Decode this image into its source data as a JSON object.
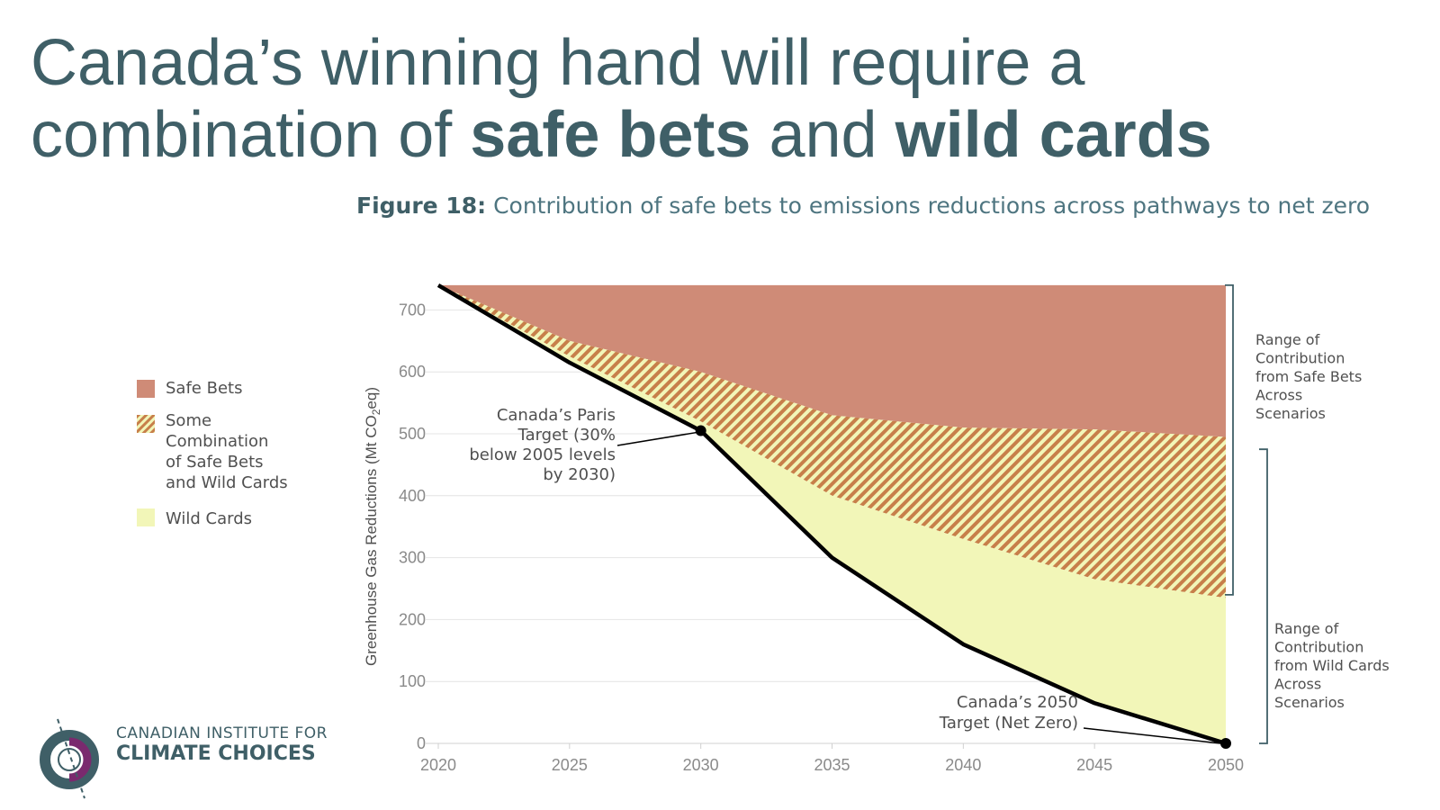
{
  "slide": {
    "title_part1": "Canada’s winning hand will require a combination of ",
    "title_bold1": "safe bets",
    "title_part2": " and ",
    "title_bold2": "wild cards"
  },
  "figure": {
    "label": "Figure 18:",
    "caption": " Contribution of safe bets to emissions reductions across pathways to net zero"
  },
  "legend": {
    "items": [
      {
        "label": "Safe Bets",
        "color": "#cf8b77"
      },
      {
        "label": "Some\nCombination\nof Safe Bets\nand Wild Cards",
        "color": "#c77f4a"
      },
      {
        "label": "Wild Cards",
        "color": "#f2f6b8"
      }
    ]
  },
  "logo": {
    "line1": "CANADIAN INSTITUTE FOR",
    "line2": "CLIMATE CHOICES"
  },
  "chart_data": {
    "type": "area",
    "ylabel_main": "Greenhouse Gas Reductions (Mt CO",
    "ylabel_sub": "2",
    "ylabel_end": "eq)",
    "xlim": [
      2020,
      2050
    ],
    "ylim": [
      0,
      750
    ],
    "x_ticks": [
      "2020",
      "2025",
      "2030",
      "2035",
      "2040",
      "2045",
      "2050"
    ],
    "y_ticks": [
      "0",
      "100",
      "200",
      "300",
      "400",
      "500",
      "600",
      "700"
    ],
    "colors": {
      "safe": "#cf8b77",
      "hatch": "#c77f4a",
      "wild": "#f2f6b8",
      "line": "#000000"
    },
    "series": [
      {
        "name": "Safe Bets",
        "x": [
          2020,
          2025,
          2030,
          2035,
          2040,
          2045,
          2050
        ],
        "y_top": [
          740,
          740,
          740,
          740,
          740,
          740,
          740
        ],
        "y_bottom": [
          740,
          650,
          600,
          530,
          510,
          507,
          495
        ]
      },
      {
        "name": "Some Combination of Safe Bets and Wild Cards",
        "x": [
          2020,
          2025,
          2030,
          2035,
          2040,
          2045,
          2050
        ],
        "y_top": [
          740,
          650,
          600,
          530,
          510,
          507,
          495
        ],
        "y_bottom": [
          740,
          625,
          520,
          400,
          330,
          265,
          235
        ]
      },
      {
        "name": "Wild Cards",
        "x": [
          2020,
          2025,
          2030,
          2035,
          2040,
          2045,
          2050
        ],
        "y_top": [
          740,
          625,
          520,
          400,
          330,
          265,
          235
        ],
        "y_bottom": [
          740,
          615,
          505,
          300,
          160,
          65,
          0
        ]
      }
    ],
    "target_line": {
      "x": [
        2020,
        2025,
        2030,
        2035,
        2040,
        2045,
        2050
      ],
      "y": [
        740,
        615,
        505,
        300,
        160,
        65,
        0
      ]
    },
    "annotations": [
      {
        "text": "Canada’s Paris\nTarget (30%\nbelow 2005 levels\nby 2030)",
        "x": 2030,
        "y": 505
      },
      {
        "text": "Canada’s 2050\nTarget (Net Zero)",
        "x": 2050,
        "y": 0
      }
    ],
    "ranges": [
      {
        "text": "Range of\nContribution\nfrom Safe Bets\nAcross\nScenarios",
        "y_from": 740,
        "y_to": 240
      },
      {
        "text": "Range of\nContribution\nfrom Wild Cards\nAcross\nScenarios",
        "y_from": 475,
        "y_to": 0
      }
    ],
    "grid": true
  }
}
